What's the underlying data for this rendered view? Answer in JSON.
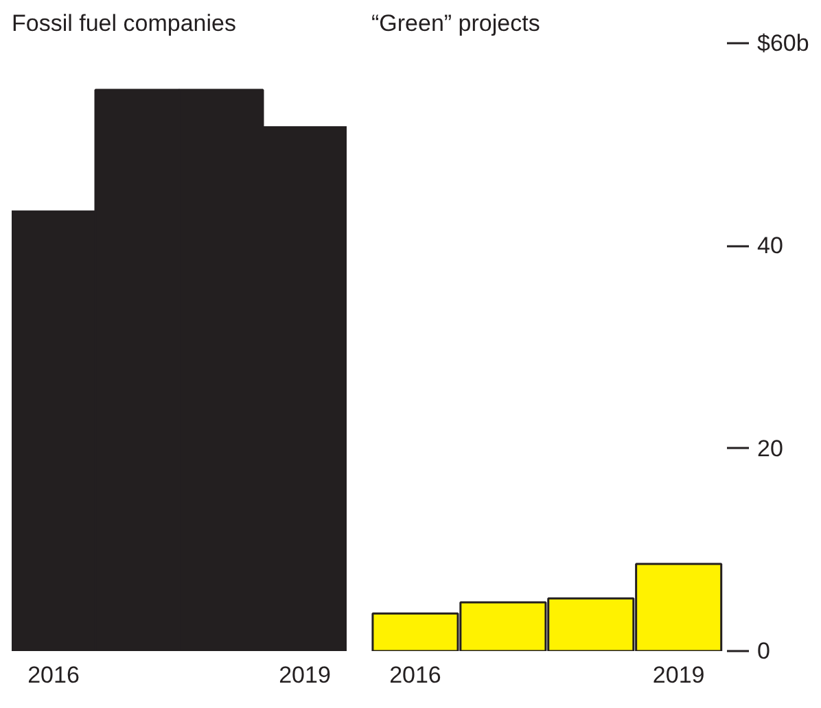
{
  "chart_data": [
    {
      "type": "bar",
      "title": "Fossil fuel companies",
      "categories": [
        "2016",
        null,
        null,
        "2019"
      ],
      "values": [
        43.4,
        55.4,
        55.4,
        51.7
      ],
      "color": "#231f20",
      "ylim": [
        0,
        60
      ],
      "tick_labels": "x",
      "grid": false
    },
    {
      "type": "bar",
      "title": "“Green” projects",
      "categories": [
        "2016",
        null,
        null,
        "2019"
      ],
      "values": [
        3.7,
        4.8,
        5.2,
        8.6
      ],
      "color": "#fff200",
      "ylim": [
        0,
        60
      ],
      "yticks": [
        0,
        20,
        40,
        {
          "value": 60,
          "label": "$60b"
        }
      ],
      "grid": false
    }
  ]
}
